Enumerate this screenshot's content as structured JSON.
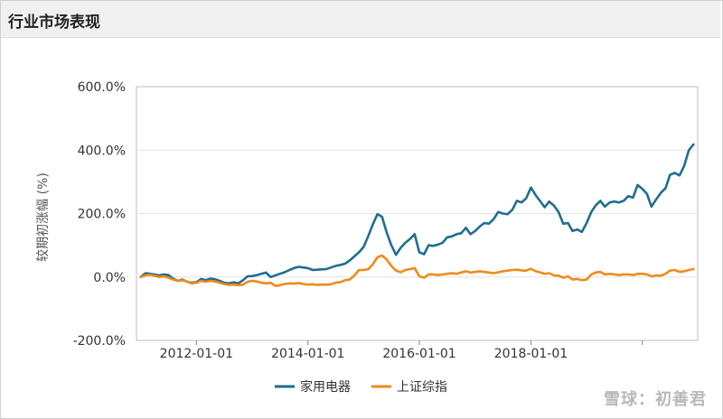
{
  "header": {
    "title": "行业市场表现"
  },
  "watermark": "雪球：初善君",
  "colors": {
    "series_blue": "#1f6e91",
    "series_orange": "#ef8a1a",
    "grid": "#e4e4e4",
    "axis_text": "#333333"
  },
  "chart_data": {
    "type": "line",
    "title": "",
    "ylabel": "较期初涨幅 (%)",
    "ylim": [
      -200,
      600
    ],
    "y_ticks": [
      -200,
      0,
      200,
      400,
      600
    ],
    "y_tick_labels": [
      "-200.0%",
      "0.0%",
      "200.0%",
      "400.0%",
      "600.0%"
    ],
    "xlim": [
      "2011-01-01",
      "2020-12-01"
    ],
    "x_ticks": [
      "2012-01-01",
      "2014-01-01",
      "2016-01-01",
      "2018-01-01",
      "2020-01-01"
    ],
    "x_tick_labels": [
      "2012-01-01",
      "2014-01-01",
      "2016-01-01",
      "2018-01-01",
      ""
    ],
    "grid": true,
    "legend_position": "bottom-center",
    "series": [
      {
        "name": "家用电器",
        "color": "#1f6e91",
        "points": [
          [
            "2011-01-01",
            0
          ],
          [
            "2011-02-01",
            12
          ],
          [
            "2011-03-01",
            10
          ],
          [
            "2011-04-01",
            8
          ],
          [
            "2011-05-01",
            5
          ],
          [
            "2011-06-01",
            8
          ],
          [
            "2011-07-01",
            6
          ],
          [
            "2011-08-01",
            -5
          ],
          [
            "2011-09-01",
            -12
          ],
          [
            "2011-10-01",
            -8
          ],
          [
            "2011-11-01",
            -15
          ],
          [
            "2011-12-01",
            -18
          ],
          [
            "2012-01-01",
            -16
          ],
          [
            "2012-02-01",
            -6
          ],
          [
            "2012-03-01",
            -10
          ],
          [
            "2012-04-01",
            -5
          ],
          [
            "2012-05-01",
            -7
          ],
          [
            "2012-06-01",
            -12
          ],
          [
            "2012-07-01",
            -18
          ],
          [
            "2012-08-01",
            -20
          ],
          [
            "2012-09-01",
            -17
          ],
          [
            "2012-10-01",
            -20
          ],
          [
            "2012-11-01",
            -10
          ],
          [
            "2012-12-01",
            2
          ],
          [
            "2013-01-01",
            3
          ],
          [
            "2013-02-01",
            6
          ],
          [
            "2013-03-01",
            10
          ],
          [
            "2013-04-01",
            14
          ],
          [
            "2013-05-01",
            0
          ],
          [
            "2013-06-01",
            5
          ],
          [
            "2013-07-01",
            10
          ],
          [
            "2013-08-01",
            15
          ],
          [
            "2013-09-01",
            22
          ],
          [
            "2013-10-01",
            28
          ],
          [
            "2013-11-01",
            32
          ],
          [
            "2013-12-01",
            30
          ],
          [
            "2014-01-01",
            28
          ],
          [
            "2014-02-01",
            22
          ],
          [
            "2014-03-01",
            23
          ],
          [
            "2014-04-01",
            24
          ],
          [
            "2014-05-01",
            25
          ],
          [
            "2014-06-01",
            30
          ],
          [
            "2014-07-01",
            35
          ],
          [
            "2014-08-01",
            38
          ],
          [
            "2014-09-01",
            42
          ],
          [
            "2014-10-01",
            52
          ],
          [
            "2014-11-01",
            65
          ],
          [
            "2014-12-01",
            78
          ],
          [
            "2015-01-01",
            95
          ],
          [
            "2015-02-01",
            130
          ],
          [
            "2015-03-01",
            165
          ],
          [
            "2015-04-01",
            198
          ],
          [
            "2015-05-01",
            190
          ],
          [
            "2015-06-01",
            140
          ],
          [
            "2015-07-01",
            100
          ],
          [
            "2015-08-01",
            70
          ],
          [
            "2015-09-01",
            92
          ],
          [
            "2015-10-01",
            108
          ],
          [
            "2015-11-01",
            120
          ],
          [
            "2015-12-01",
            135
          ],
          [
            "2016-01-01",
            78
          ],
          [
            "2016-02-01",
            72
          ],
          [
            "2016-03-01",
            100
          ],
          [
            "2016-04-01",
            98
          ],
          [
            "2016-05-01",
            102
          ],
          [
            "2016-06-01",
            108
          ],
          [
            "2016-07-01",
            125
          ],
          [
            "2016-08-01",
            128
          ],
          [
            "2016-09-01",
            135
          ],
          [
            "2016-10-01",
            138
          ],
          [
            "2016-11-01",
            155
          ],
          [
            "2016-12-01",
            135
          ],
          [
            "2017-01-01",
            145
          ],
          [
            "2017-02-01",
            160
          ],
          [
            "2017-03-01",
            170
          ],
          [
            "2017-04-01",
            168
          ],
          [
            "2017-05-01",
            182
          ],
          [
            "2017-06-01",
            205
          ],
          [
            "2017-07-01",
            200
          ],
          [
            "2017-08-01",
            198
          ],
          [
            "2017-09-01",
            212
          ],
          [
            "2017-10-01",
            240
          ],
          [
            "2017-11-01",
            235
          ],
          [
            "2017-12-01",
            248
          ],
          [
            "2018-01-01",
            282
          ],
          [
            "2018-02-01",
            258
          ],
          [
            "2018-03-01",
            240
          ],
          [
            "2018-04-01",
            220
          ],
          [
            "2018-05-01",
            238
          ],
          [
            "2018-06-01",
            225
          ],
          [
            "2018-07-01",
            205
          ],
          [
            "2018-08-01",
            168
          ],
          [
            "2018-09-01",
            170
          ],
          [
            "2018-10-01",
            145
          ],
          [
            "2018-11-01",
            150
          ],
          [
            "2018-12-01",
            142
          ],
          [
            "2019-01-01",
            170
          ],
          [
            "2019-02-01",
            205
          ],
          [
            "2019-03-01",
            225
          ],
          [
            "2019-04-01",
            240
          ],
          [
            "2019-05-01",
            222
          ],
          [
            "2019-06-01",
            235
          ],
          [
            "2019-07-01",
            238
          ],
          [
            "2019-08-01",
            235
          ],
          [
            "2019-09-01",
            240
          ],
          [
            "2019-10-01",
            255
          ],
          [
            "2019-11-01",
            250
          ],
          [
            "2019-12-01",
            290
          ],
          [
            "2020-01-01",
            278
          ],
          [
            "2020-02-01",
            262
          ],
          [
            "2020-03-01",
            222
          ],
          [
            "2020-04-01",
            245
          ],
          [
            "2020-05-01",
            265
          ],
          [
            "2020-06-01",
            280
          ],
          [
            "2020-07-01",
            322
          ],
          [
            "2020-08-01",
            328
          ],
          [
            "2020-09-01",
            320
          ],
          [
            "2020-10-01",
            350
          ],
          [
            "2020-11-01",
            400
          ],
          [
            "2020-12-01",
            418
          ]
        ]
      },
      {
        "name": "上证综指",
        "color": "#ef8a1a",
        "points": [
          [
            "2011-01-01",
            0
          ],
          [
            "2011-02-01",
            5
          ],
          [
            "2011-03-01",
            7
          ],
          [
            "2011-04-01",
            4
          ],
          [
            "2011-05-01",
            0
          ],
          [
            "2011-06-01",
            2
          ],
          [
            "2011-07-01",
            -2
          ],
          [
            "2011-08-01",
            -8
          ],
          [
            "2011-09-01",
            -12
          ],
          [
            "2011-10-01",
            -10
          ],
          [
            "2011-11-01",
            -15
          ],
          [
            "2011-12-01",
            -20
          ],
          [
            "2012-01-01",
            -18
          ],
          [
            "2012-02-01",
            -12
          ],
          [
            "2012-03-01",
            -15
          ],
          [
            "2012-04-01",
            -12
          ],
          [
            "2012-05-01",
            -14
          ],
          [
            "2012-06-01",
            -18
          ],
          [
            "2012-07-01",
            -22
          ],
          [
            "2012-08-01",
            -25
          ],
          [
            "2012-09-01",
            -24
          ],
          [
            "2012-10-01",
            -26
          ],
          [
            "2012-11-01",
            -24
          ],
          [
            "2012-12-01",
            -15
          ],
          [
            "2013-01-01",
            -12
          ],
          [
            "2013-02-01",
            -14
          ],
          [
            "2013-03-01",
            -18
          ],
          [
            "2013-04-01",
            -20
          ],
          [
            "2013-05-01",
            -18
          ],
          [
            "2013-06-01",
            -28
          ],
          [
            "2013-07-01",
            -26
          ],
          [
            "2013-08-01",
            -22
          ],
          [
            "2013-09-01",
            -20
          ],
          [
            "2013-10-01",
            -21
          ],
          [
            "2013-11-01",
            -19
          ],
          [
            "2013-12-01",
            -22
          ],
          [
            "2014-01-01",
            -24
          ],
          [
            "2014-02-01",
            -23
          ],
          [
            "2014-03-01",
            -25
          ],
          [
            "2014-04-01",
            -24
          ],
          [
            "2014-05-01",
            -24
          ],
          [
            "2014-06-01",
            -23
          ],
          [
            "2014-07-01",
            -18
          ],
          [
            "2014-08-01",
            -16
          ],
          [
            "2014-09-01",
            -10
          ],
          [
            "2014-10-01",
            -8
          ],
          [
            "2014-11-01",
            5
          ],
          [
            "2014-12-01",
            22
          ],
          [
            "2015-01-01",
            22
          ],
          [
            "2015-02-01",
            25
          ],
          [
            "2015-03-01",
            40
          ],
          [
            "2015-04-01",
            62
          ],
          [
            "2015-05-01",
            68
          ],
          [
            "2015-06-01",
            55
          ],
          [
            "2015-07-01",
            35
          ],
          [
            "2015-08-01",
            20
          ],
          [
            "2015-09-01",
            15
          ],
          [
            "2015-10-01",
            22
          ],
          [
            "2015-11-01",
            25
          ],
          [
            "2015-12-01",
            28
          ],
          [
            "2016-01-01",
            2
          ],
          [
            "2016-02-01",
            -2
          ],
          [
            "2016-03-01",
            8
          ],
          [
            "2016-04-01",
            8
          ],
          [
            "2016-05-01",
            6
          ],
          [
            "2016-06-01",
            8
          ],
          [
            "2016-07-01",
            10
          ],
          [
            "2016-08-01",
            12
          ],
          [
            "2016-09-01",
            10
          ],
          [
            "2016-10-01",
            14
          ],
          [
            "2016-11-01",
            18
          ],
          [
            "2016-12-01",
            14
          ],
          [
            "2017-01-01",
            16
          ],
          [
            "2017-02-01",
            18
          ],
          [
            "2017-03-01",
            16
          ],
          [
            "2017-04-01",
            14
          ],
          [
            "2017-05-01",
            12
          ],
          [
            "2017-06-01",
            15
          ],
          [
            "2017-07-01",
            18
          ],
          [
            "2017-08-01",
            20
          ],
          [
            "2017-09-01",
            22
          ],
          [
            "2017-10-01",
            23
          ],
          [
            "2017-11-01",
            21
          ],
          [
            "2017-12-01",
            20
          ],
          [
            "2018-01-01",
            26
          ],
          [
            "2018-02-01",
            18
          ],
          [
            "2018-03-01",
            15
          ],
          [
            "2018-04-01",
            10
          ],
          [
            "2018-05-01",
            12
          ],
          [
            "2018-06-01",
            5
          ],
          [
            "2018-07-01",
            4
          ],
          [
            "2018-08-01",
            -2
          ],
          [
            "2018-09-01",
            2
          ],
          [
            "2018-10-01",
            -8
          ],
          [
            "2018-11-01",
            -6
          ],
          [
            "2018-12-01",
            -10
          ],
          [
            "2019-01-01",
            -8
          ],
          [
            "2019-02-01",
            8
          ],
          [
            "2019-03-01",
            14
          ],
          [
            "2019-04-01",
            16
          ],
          [
            "2019-05-01",
            8
          ],
          [
            "2019-06-01",
            10
          ],
          [
            "2019-07-01",
            8
          ],
          [
            "2019-08-01",
            6
          ],
          [
            "2019-09-01",
            8
          ],
          [
            "2019-10-01",
            8
          ],
          [
            "2019-11-01",
            6
          ],
          [
            "2019-12-01",
            10
          ],
          [
            "2020-01-01",
            10
          ],
          [
            "2020-02-01",
            8
          ],
          [
            "2020-03-01",
            2
          ],
          [
            "2020-04-01",
            5
          ],
          [
            "2020-05-01",
            4
          ],
          [
            "2020-06-01",
            10
          ],
          [
            "2020-07-01",
            20
          ],
          [
            "2020-08-01",
            22
          ],
          [
            "2020-09-01",
            16
          ],
          [
            "2020-10-01",
            18
          ],
          [
            "2020-11-01",
            22
          ],
          [
            "2020-12-01",
            25
          ]
        ]
      }
    ]
  }
}
